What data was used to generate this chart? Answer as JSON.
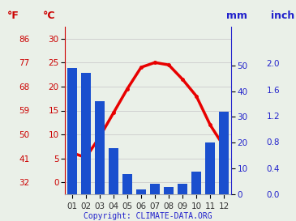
{
  "months": [
    "01",
    "02",
    "03",
    "04",
    "05",
    "06",
    "07",
    "08",
    "09",
    "10",
    "11",
    "12"
  ],
  "precipitation_mm": [
    49,
    47,
    36,
    18,
    8,
    2,
    4,
    3,
    4,
    9,
    20,
    32
  ],
  "temperature_c": [
    6.2,
    5.2,
    9.5,
    14.5,
    19.5,
    24.0,
    25.0,
    24.5,
    21.5,
    18.0,
    12.0,
    7.5
  ],
  "bar_color": "#1a4fce",
  "line_color": "#e80000",
  "bg_color": "#eaf0e8",
  "grid_color": "#cccccc",
  "left_axis_color": "#cc0000",
  "right_axis_color": "#2222cc",
  "ylabel_left_f": "°F",
  "ylabel_left_c": "°C",
  "ylabel_right_mm": "mm",
  "ylabel_right_inch": "inch",
  "copyright": "Copyright: CLIMATE-DATA.ORG",
  "ylim_temp_c": [
    -2.5,
    32.5
  ],
  "ylim_precip_mm": [
    0,
    65
  ],
  "temp_ticks_c": [
    0,
    5,
    10,
    15,
    20,
    25,
    30
  ],
  "temp_ticks_f": [
    32,
    41,
    50,
    59,
    68,
    77,
    86
  ],
  "precip_ticks_mm": [
    0,
    10,
    20,
    30,
    40,
    50
  ],
  "precip_ticks_inch": [
    0.0,
    0.4,
    0.8,
    1.2,
    1.6,
    2.0
  ]
}
